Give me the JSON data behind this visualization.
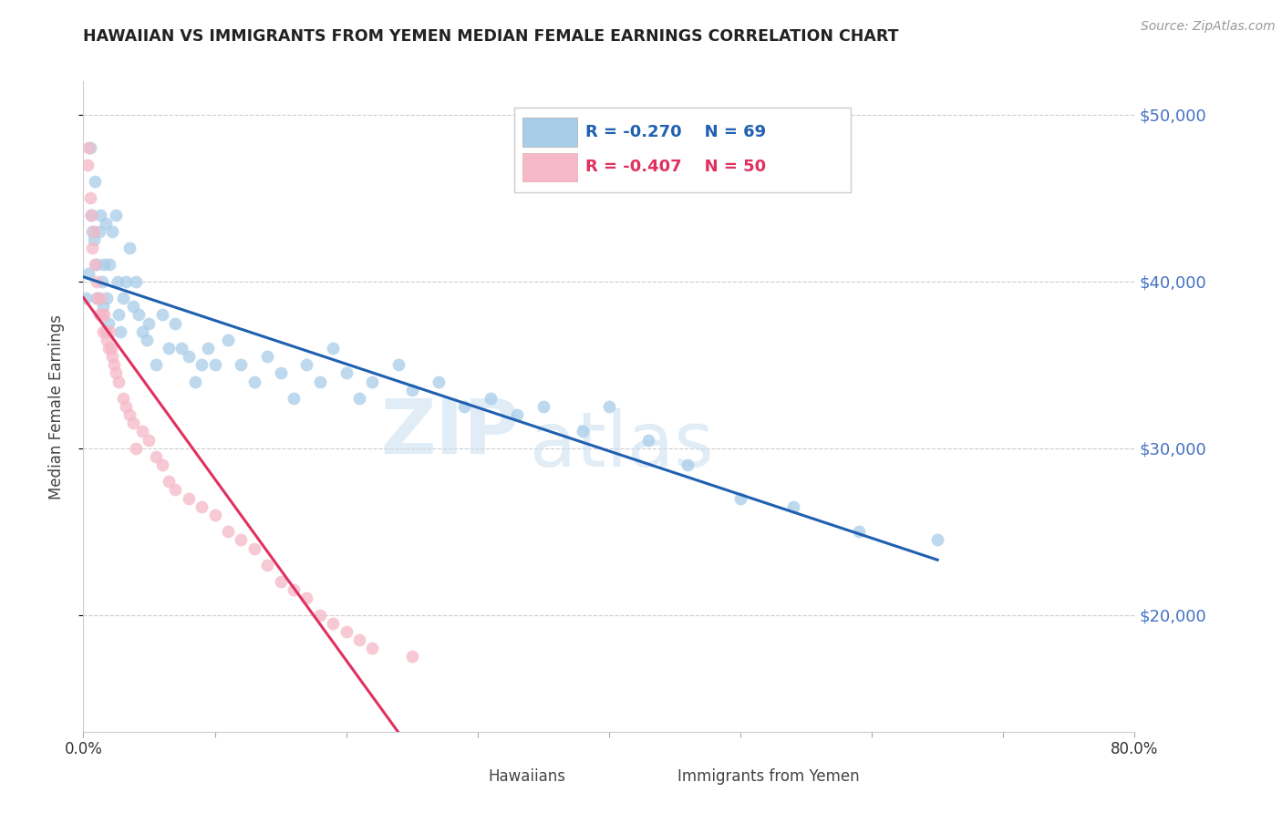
{
  "title": "HAWAIIAN VS IMMIGRANTS FROM YEMEN MEDIAN FEMALE EARNINGS CORRELATION CHART",
  "source": "Source: ZipAtlas.com",
  "ylabel": "Median Female Earnings",
  "xmin": 0.0,
  "xmax": 0.8,
  "ymin": 13000,
  "ymax": 52000,
  "yticks": [
    20000,
    30000,
    40000,
    50000
  ],
  "ytick_labels": [
    "$20,000",
    "$30,000",
    "$40,000",
    "$50,000"
  ],
  "blue_color": "#a8cde8",
  "pink_color": "#f5b8c8",
  "blue_line_color": "#2060b0",
  "pink_line_color": "#e03060",
  "axis_color": "#4472c4",
  "watermark_color": "#cce0f0",
  "legend_R_blue": "-0.270",
  "legend_N_blue": "69",
  "legend_R_pink": "-0.407",
  "legend_N_pink": "50",
  "hawaiians_x": [
    0.002,
    0.004,
    0.005,
    0.006,
    0.007,
    0.008,
    0.009,
    0.01,
    0.01,
    0.012,
    0.013,
    0.014,
    0.015,
    0.016,
    0.017,
    0.018,
    0.019,
    0.02,
    0.022,
    0.025,
    0.026,
    0.027,
    0.028,
    0.03,
    0.032,
    0.035,
    0.038,
    0.04,
    0.042,
    0.045,
    0.048,
    0.05,
    0.055,
    0.06,
    0.065,
    0.07,
    0.075,
    0.08,
    0.085,
    0.09,
    0.095,
    0.1,
    0.11,
    0.12,
    0.13,
    0.14,
    0.15,
    0.16,
    0.17,
    0.18,
    0.19,
    0.2,
    0.21,
    0.22,
    0.24,
    0.25,
    0.27,
    0.29,
    0.31,
    0.33,
    0.35,
    0.38,
    0.4,
    0.43,
    0.46,
    0.5,
    0.54,
    0.59,
    0.65
  ],
  "hawaiians_y": [
    39000,
    40500,
    48000,
    44000,
    43000,
    42500,
    46000,
    41000,
    39000,
    43000,
    44000,
    40000,
    38500,
    41000,
    43500,
    39000,
    37500,
    41000,
    43000,
    44000,
    40000,
    38000,
    37000,
    39000,
    40000,
    42000,
    38500,
    40000,
    38000,
    37000,
    36500,
    37500,
    35000,
    38000,
    36000,
    37500,
    36000,
    35500,
    34000,
    35000,
    36000,
    35000,
    36500,
    35000,
    34000,
    35500,
    34500,
    33000,
    35000,
    34000,
    36000,
    34500,
    33000,
    34000,
    35000,
    33500,
    34000,
    32500,
    33000,
    32000,
    32500,
    31000,
    32500,
    30500,
    29000,
    27000,
    26500,
    25000,
    24500
  ],
  "yemen_x": [
    0.003,
    0.004,
    0.005,
    0.006,
    0.007,
    0.008,
    0.009,
    0.01,
    0.011,
    0.012,
    0.013,
    0.014,
    0.015,
    0.016,
    0.017,
    0.018,
    0.019,
    0.02,
    0.021,
    0.022,
    0.023,
    0.025,
    0.027,
    0.03,
    0.032,
    0.035,
    0.038,
    0.04,
    0.045,
    0.05,
    0.055,
    0.06,
    0.065,
    0.07,
    0.08,
    0.09,
    0.1,
    0.11,
    0.12,
    0.13,
    0.14,
    0.15,
    0.16,
    0.17,
    0.18,
    0.19,
    0.2,
    0.21,
    0.22,
    0.25
  ],
  "yemen_y": [
    47000,
    48000,
    45000,
    44000,
    42000,
    43000,
    41000,
    40000,
    39000,
    38000,
    39000,
    38000,
    37000,
    38000,
    37000,
    36500,
    36000,
    37000,
    36000,
    35500,
    35000,
    34500,
    34000,
    33000,
    32500,
    32000,
    31500,
    30000,
    31000,
    30500,
    29500,
    29000,
    28000,
    27500,
    27000,
    26500,
    26000,
    25000,
    24500,
    24000,
    23000,
    22000,
    21500,
    21000,
    20000,
    19500,
    19000,
    18500,
    18000,
    17500
  ]
}
